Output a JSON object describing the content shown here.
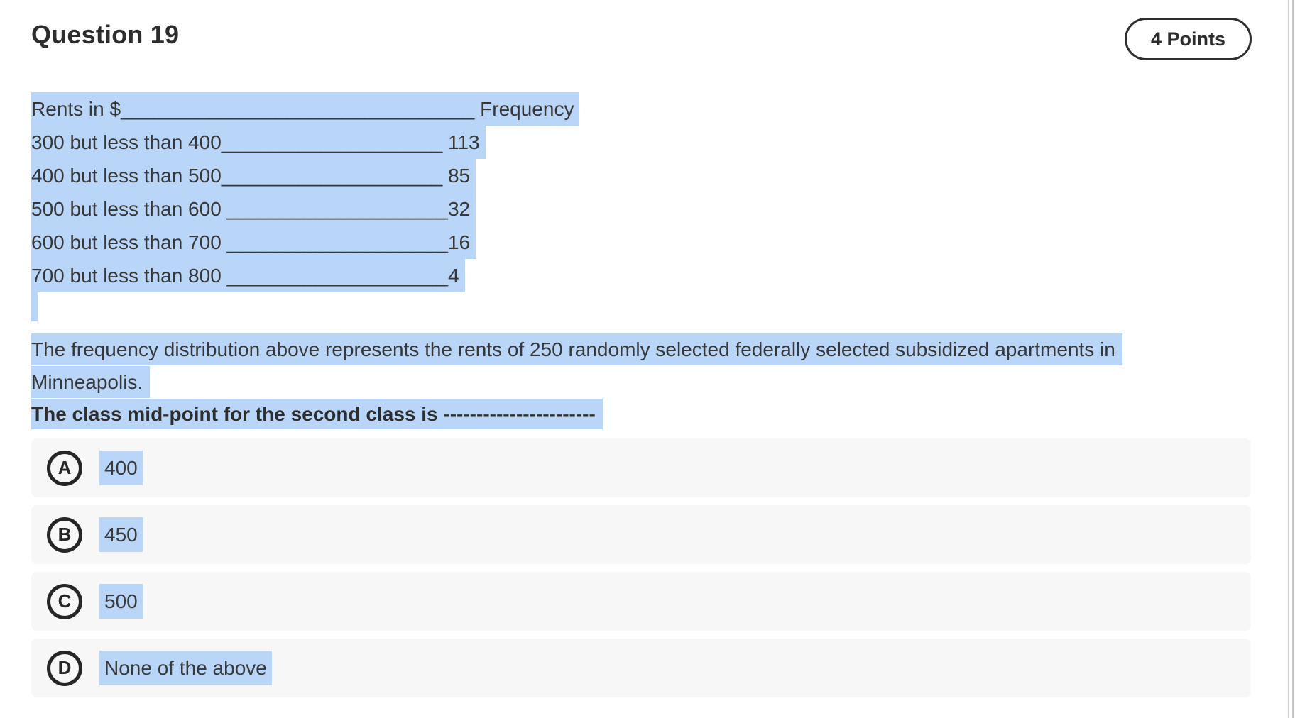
{
  "header": {
    "title": "Question 19",
    "points_badge": "4 Points"
  },
  "body": {
    "table_lines": [
      "Rents in $________________________________ Frequency",
      "300 but less than 400____________________ 113",
      "400 but less than 500____________________ 85",
      "500 but less than 600 ____________________32",
      "600 but less than 700 ____________________16",
      "700 but less than 800 ____________________4"
    ],
    "paragraph_line1": "The frequency distribution above represents the rents of 250 randomly selected federally selected subsidized apartments in",
    "paragraph_line2": "Minneapolis.",
    "prompt_bold": "The class mid-point for the second class is -----------------------"
  },
  "options": [
    {
      "letter": "A",
      "label": "400"
    },
    {
      "letter": "B",
      "label": "450"
    },
    {
      "letter": "C",
      "label": "500"
    },
    {
      "letter": "D",
      "label": "None of the above"
    }
  ],
  "colors": {
    "selection_highlight": "#b9d5f7",
    "option_row_background": "#f7f7f7",
    "text": "#373737",
    "pill_border": "#2f2f2f"
  }
}
